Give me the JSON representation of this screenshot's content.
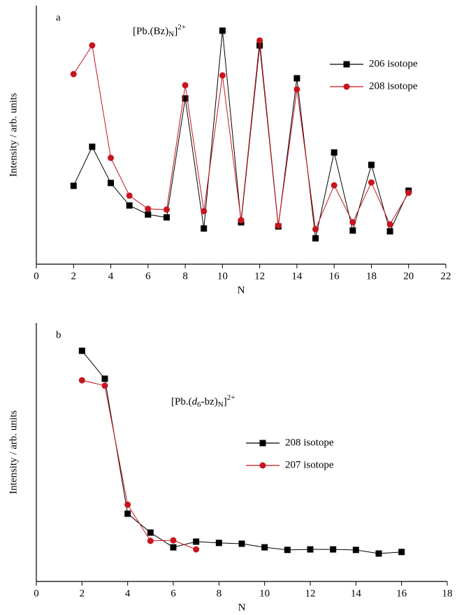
{
  "chart_data": [
    {
      "type": "line",
      "panel_label": "a",
      "x_label": "N",
      "y_label": "Intensity / arb. units",
      "annotation": [
        {
          "text": "[Pb.(Bz)",
          "style": "normal"
        },
        {
          "text": "N",
          "style": "sub"
        },
        {
          "text": "]",
          "style": "normal"
        },
        {
          "text": "2+",
          "style": "sup"
        }
      ],
      "x": [
        2,
        3,
        4,
        5,
        6,
        7,
        8,
        9,
        10,
        11,
        12,
        13,
        14,
        15,
        16,
        17,
        18,
        19,
        20
      ],
      "series": [
        {
          "name": "206 isotope",
          "color": "#000000",
          "marker": "square",
          "values": [
            30.3,
            45.4,
            31.4,
            22.7,
            19.2,
            18.1,
            64.1,
            13.8,
            90.3,
            16.2,
            84.6,
            14.6,
            71.9,
            10,
            43.2,
            13,
            38.4,
            12.7,
            28.4
          ]
        },
        {
          "name": "208 isotope",
          "color": "#c8141e",
          "marker": "circle",
          "values": [
            73.5,
            84.6,
            41.1,
            26.5,
            21.4,
            21.1,
            69.2,
            20.5,
            73,
            17,
            86.5,
            14.9,
            67.6,
            13.5,
            30.5,
            16.2,
            31.6,
            15.4,
            27.6
          ]
        }
      ],
      "xlim": [
        0,
        22
      ],
      "xticks": [
        0,
        2,
        4,
        6,
        8,
        10,
        12,
        14,
        16,
        18,
        20,
        22
      ],
      "ylim": [
        0,
        100
      ]
    },
    {
      "type": "line",
      "panel_label": "b",
      "x_label": "N",
      "y_label": "Intensity / arb. units",
      "annotation": [
        {
          "text": "[Pb.(",
          "style": "normal"
        },
        {
          "text": "d",
          "style": "italic"
        },
        {
          "text": "6",
          "style": "sub"
        },
        {
          "text": "-bz)",
          "style": "normal"
        },
        {
          "text": "N",
          "style": "sub"
        },
        {
          "text": "]",
          "style": "normal"
        },
        {
          "text": "2+",
          "style": "sup"
        }
      ],
      "x": [
        2,
        3,
        4,
        5,
        6,
        7,
        8,
        9,
        10,
        11,
        12,
        13,
        14,
        15,
        16
      ],
      "series": [
        {
          "name": "208 isotope",
          "color": "#000000",
          "marker": "square",
          "values": [
            89.2,
            78.4,
            26.2,
            18.9,
            13.2,
            15.4,
            14.9,
            14.6,
            13.2,
            12.2,
            12.4,
            12.4,
            12.2,
            10.8,
            11.4
          ]
        },
        {
          "name": "207 isotope",
          "color": "#c8141e",
          "marker": "circle",
          "values": [
            77.8,
            75.7,
            29.7,
            15.7,
            15.9,
            12.4,
            null,
            null,
            null,
            null,
            null,
            null,
            null,
            null,
            null
          ]
        }
      ],
      "xlim": [
        0,
        18
      ],
      "xticks": [
        0,
        2,
        4,
        6,
        8,
        10,
        12,
        14,
        16,
        18
      ],
      "ylim": [
        0,
        100
      ]
    }
  ]
}
